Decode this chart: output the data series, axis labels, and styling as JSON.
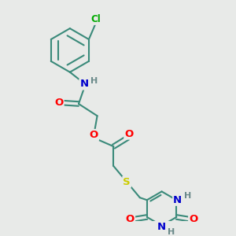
{
  "bg_color": "#e8eae8",
  "bond_color": "#3a8a7a",
  "bond_width": 1.5,
  "atom_colors": {
    "O": "#ff0000",
    "N": "#0000cc",
    "S": "#cccc00",
    "Cl": "#00aa00",
    "C": "#2a7a6a",
    "H": "#6a8a8a"
  },
  "fs": 9.5,
  "fsh": 8.0
}
